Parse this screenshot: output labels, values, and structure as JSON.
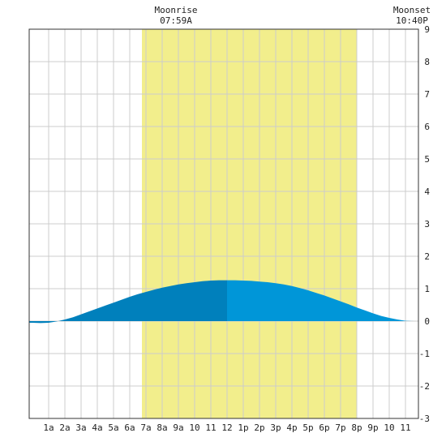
{
  "moonrise": {
    "label": "Moonrise",
    "time": "07:59A"
  },
  "moonset": {
    "label": "Moonset",
    "time": "10:40P"
  },
  "colors": {
    "background": "#ffffff",
    "grid": "#cccccc",
    "frame": "#333333",
    "daylight": "#f2ee8c",
    "tide_before_noon": "#0080bc",
    "tide_after_noon": "#0096d8"
  },
  "chart_data": {
    "type": "area",
    "x_unit": "hour of day",
    "xlim": [
      -0.2,
      23.8
    ],
    "ylim": [
      -3,
      9
    ],
    "yticks": [
      -3,
      -2,
      -1,
      0,
      1,
      2,
      3,
      4,
      5,
      6,
      7,
      8,
      9
    ],
    "xtick_labels": [
      "1a",
      "2a",
      "3a",
      "4a",
      "5a",
      "6a",
      "7a",
      "8a",
      "9a",
      "10",
      "11",
      "12",
      "1p",
      "2p",
      "3p",
      "4p",
      "5p",
      "6p",
      "7p",
      "8p",
      "9p",
      "10",
      "11"
    ],
    "xtick_hours": [
      1,
      2,
      3,
      4,
      5,
      6,
      7,
      8,
      9,
      10,
      11,
      12,
      13,
      14,
      15,
      16,
      17,
      18,
      19,
      20,
      21,
      22,
      23
    ],
    "daylight_span": [
      6.75,
      20.0
    ],
    "grid": true,
    "series": [
      {
        "x": [
          -0.2,
          0,
          0.5,
          1,
          1.5,
          2,
          2.5,
          3,
          3.5,
          4,
          4.5,
          5,
          5.5,
          6,
          6.5,
          7,
          7.5,
          8,
          8.5,
          9,
          9.5,
          10,
          10.5,
          11,
          11.5,
          12,
          12.5,
          13,
          13.5,
          14,
          14.5,
          15,
          15.5,
          16,
          16.5,
          17,
          17.5,
          18,
          18.5,
          19,
          19.5,
          20,
          20.5,
          21,
          21.5,
          22,
          22.5,
          23,
          23.5,
          23.8
        ],
        "y": [
          -0.05,
          -0.05,
          -0.06,
          -0.05,
          -0.01,
          0.05,
          0.12,
          0.21,
          0.3,
          0.39,
          0.48,
          0.57,
          0.66,
          0.75,
          0.83,
          0.9,
          0.97,
          1.03,
          1.08,
          1.13,
          1.17,
          1.2,
          1.23,
          1.25,
          1.26,
          1.26,
          1.26,
          1.25,
          1.24,
          1.22,
          1.2,
          1.17,
          1.13,
          1.08,
          1.02,
          0.95,
          0.87,
          0.79,
          0.7,
          0.61,
          0.52,
          0.42,
          0.33,
          0.24,
          0.16,
          0.1,
          0.05,
          0.01,
          0.0,
          0.0
        ]
      }
    ],
    "color_split_hour": 12.0
  }
}
